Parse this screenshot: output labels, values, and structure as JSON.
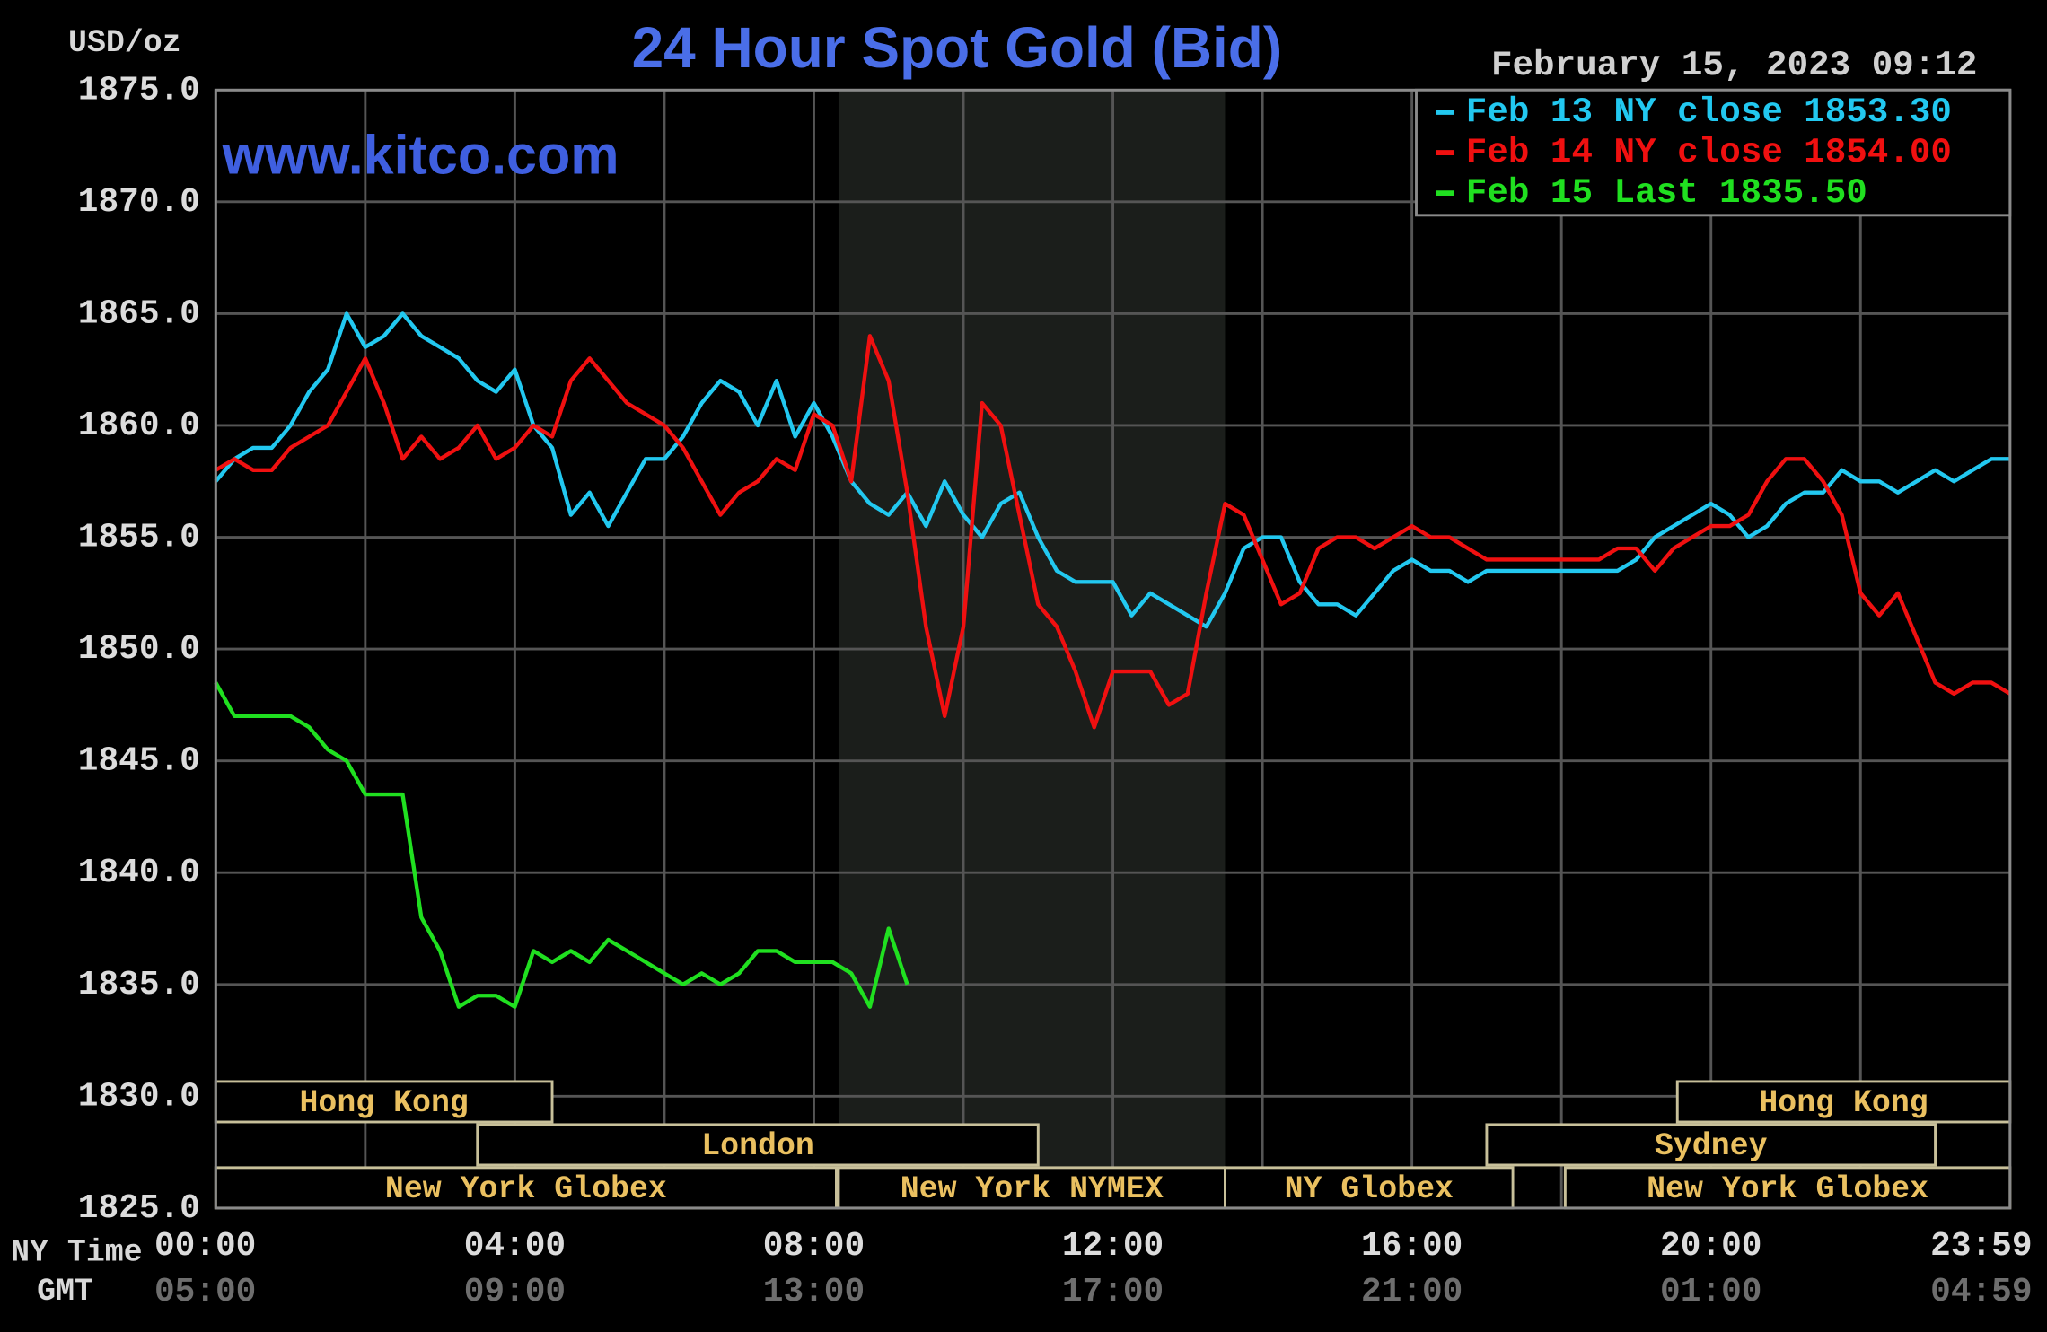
{
  "chart_data": {
    "type": "line",
    "title": "24 Hour Spot Gold (Bid)",
    "y_label": "USD/oz",
    "watermark": "www.kitco.com",
    "timestamp": "February 15, 2023 09:12",
    "x_row_labels": [
      "NY Time",
      "GMT"
    ],
    "xlim": [
      0,
      24
    ],
    "xticks": [
      {
        "value": 0,
        "label": "00:00"
      },
      {
        "value": 4,
        "label": "04:00"
      },
      {
        "value": 8,
        "label": "08:00"
      },
      {
        "value": 12,
        "label": "12:00"
      },
      {
        "value": 16,
        "label": "16:00"
      },
      {
        "value": 20,
        "label": "20:00"
      },
      {
        "value": 23.983,
        "label": "23:59"
      }
    ],
    "gmt_labels": [
      "05:00",
      "09:00",
      "13:00",
      "17:00",
      "21:00",
      "01:00",
      "04:59"
    ],
    "x_grid": [
      0,
      2,
      4,
      6,
      8,
      10,
      12,
      14,
      16,
      18,
      20,
      22,
      24
    ],
    "ylim": [
      1825,
      1875
    ],
    "yticks": [
      {
        "value": 1825,
        "label": "1825.0"
      },
      {
        "value": 1830,
        "label": "1830.0"
      },
      {
        "value": 1835,
        "label": "1835.0"
      },
      {
        "value": 1840,
        "label": "1840.0"
      },
      {
        "value": 1845,
        "label": "1845.0"
      },
      {
        "value": 1850,
        "label": "1850.0"
      },
      {
        "value": 1855,
        "label": "1855.0"
      },
      {
        "value": 1860,
        "label": "1860.0"
      },
      {
        "value": 1865,
        "label": "1865.0"
      },
      {
        "value": 1870,
        "label": "1870.0"
      },
      {
        "value": 1875,
        "label": "1875.0"
      }
    ],
    "grid": true,
    "x": [
      0,
      0.25,
      0.5,
      0.75,
      1,
      1.25,
      1.5,
      1.75,
      2,
      2.25,
      2.5,
      2.75,
      3,
      3.25,
      3.5,
      3.75,
      4,
      4.25,
      4.5,
      4.75,
      5,
      5.25,
      5.5,
      5.75,
      6,
      6.25,
      6.5,
      6.75,
      7,
      7.25,
      7.5,
      7.75,
      8,
      8.25,
      8.5,
      8.75,
      9,
      9.25,
      9.5,
      9.75,
      10,
      10.25,
      10.5,
      10.75,
      11,
      11.25,
      11.5,
      11.75,
      12,
      12.25,
      12.5,
      12.75,
      13,
      13.25,
      13.5,
      13.75,
      14,
      14.25,
      14.5,
      14.75,
      15,
      15.25,
      15.5,
      15.75,
      16,
      16.25,
      16.5,
      16.75,
      17,
      17.25,
      17.5,
      17.75,
      18,
      18.25,
      18.5,
      18.75,
      19,
      19.25,
      19.5,
      19.75,
      20,
      20.25,
      20.5,
      20.75,
      21,
      21.25,
      21.5,
      21.75,
      22,
      22.25,
      22.5,
      22.75,
      23,
      23.25,
      23.5,
      23.75,
      24
    ],
    "series": [
      {
        "name": "Feb 13 NY close",
        "last": {
          "value": 1853.3,
          "label": "1853.30"
        },
        "color": "#22c8f0",
        "values": [
          1857.5,
          1858.5,
          1859,
          1859,
          1860,
          1861.5,
          1862.5,
          1865,
          1863.5,
          1864,
          1865,
          1864,
          1863.5,
          1863,
          1862,
          1861.5,
          1862.5,
          1860,
          1859,
          1856,
          1857,
          1855.5,
          1857,
          1858.5,
          1858.5,
          1859.5,
          1861,
          1862,
          1861.5,
          1860,
          1862,
          1859.5,
          1861,
          1859.5,
          1857.5,
          1856.5,
          1856,
          1857,
          1855.5,
          1857.5,
          1856,
          1855,
          1856.5,
          1857,
          1855,
          1853.5,
          1853,
          1853,
          1853,
          1851.5,
          1852.5,
          1852,
          1851.5,
          1851,
          1852.5,
          1854.5,
          1855,
          1855,
          1853,
          1852,
          1852,
          1851.5,
          1852.5,
          1853.5,
          1854,
          1853.5,
          1853.5,
          1853,
          1853.5,
          1853.5,
          1853.5,
          1853.5,
          1853.5,
          1853.5,
          1853.5,
          1853.5,
          1854,
          1855,
          1855.5,
          1856,
          1856.5,
          1856,
          1855,
          1855.5,
          1856.5,
          1857,
          1857,
          1858,
          1857.5,
          1857.5,
          1857,
          1857.5,
          1858,
          1857.5,
          1858,
          1858.5,
          1858.5
        ]
      },
      {
        "name": "Feb 14 NY close",
        "last": {
          "value": 1854,
          "label": "1854.00"
        },
        "color": "#f01010",
        "values": [
          1858,
          1858.5,
          1858,
          1858,
          1859,
          1859.5,
          1860,
          1861.5,
          1863,
          1861,
          1858.5,
          1859.5,
          1858.5,
          1859,
          1860,
          1858.5,
          1859,
          1860,
          1859.5,
          1862,
          1863,
          1862,
          1861,
          1860.5,
          1860,
          1859,
          1857.5,
          1856,
          1857,
          1857.5,
          1858.5,
          1858,
          1860.5,
          1860,
          1857.5,
          1864,
          1862,
          1857,
          1851,
          1847,
          1851,
          1861,
          1860,
          1856,
          1852,
          1851,
          1849,
          1846.5,
          1849,
          1849,
          1849,
          1847.5,
          1848,
          1852.5,
          1856.5,
          1856,
          1854,
          1852,
          1852.5,
          1854.5,
          1855,
          1855,
          1854.5,
          1855,
          1855.5,
          1855,
          1855,
          1854.5,
          1854,
          1854,
          1854,
          1854,
          1854,
          1854,
          1854,
          1854.5,
          1854.5,
          1853.5,
          1854.5,
          1855,
          1855.5,
          1855.5,
          1856,
          1857.5,
          1858.5,
          1858.5,
          1857.5,
          1856,
          1852.5,
          1851.5,
          1852.5,
          1850.5,
          1848.5,
          1848,
          1848.5,
          1848.5,
          1848
        ]
      },
      {
        "name": "Feb 15 Last",
        "last": {
          "value": 1835.5,
          "label": "1835.50"
        },
        "color": "#20e020",
        "values": [
          1848.5,
          1847,
          1847,
          1847,
          1847,
          1846.5,
          1845.5,
          1845,
          1843.5,
          1843.5,
          1843.5,
          1838,
          1836.5,
          1834,
          1834.5,
          1834.5,
          1834,
          1836.5,
          1836,
          1836.5,
          1836,
          1837,
          1836.5,
          1836,
          1835.5,
          1835,
          1835.5,
          1835,
          1835.5,
          1836.5,
          1836.5,
          1836,
          1836,
          1836,
          1835.5,
          1834,
          1837.5,
          1835,
          null,
          null,
          null,
          null,
          null,
          null,
          null,
          null,
          null,
          null,
          null,
          null,
          null,
          null,
          null,
          null,
          null,
          null,
          null,
          null,
          null,
          null,
          null,
          null,
          null,
          null,
          null,
          null,
          null,
          null,
          null,
          null,
          null,
          null,
          null,
          null,
          null,
          null,
          null,
          null,
          null,
          null,
          null,
          null,
          null,
          null,
          null,
          null,
          null,
          null,
          null,
          null,
          null,
          null,
          null,
          null,
          null,
          null,
          null
        ]
      }
    ],
    "sessions": [
      {
        "label": "Hong Kong",
        "start": 0,
        "end": 4.5,
        "row": 0
      },
      {
        "label": "Hong Kong",
        "start": 19.55,
        "end": 24,
        "row": 0
      },
      {
        "label": "London",
        "start": 3.5,
        "end": 11,
        "row": 1
      },
      {
        "label": "Sydney",
        "start": 17,
        "end": 23,
        "row": 1
      },
      {
        "label": "New York Globex",
        "start": 0,
        "end": 8.3,
        "row": 2
      },
      {
        "label": "New York NYMEX",
        "start": 8.33,
        "end": 13.5,
        "row": 2,
        "shaded": true
      },
      {
        "label": "NY Globex",
        "start": 13.5,
        "end": 17.35,
        "row": 2
      },
      {
        "label": "New York Globex",
        "start": 18.05,
        "end": 24,
        "row": 2
      }
    ]
  }
}
